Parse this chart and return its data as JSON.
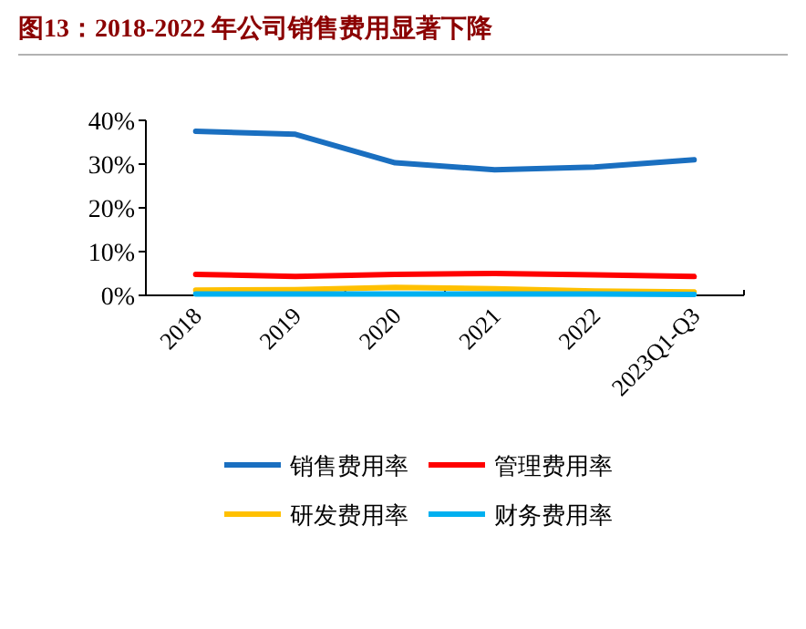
{
  "chart_data": {
    "type": "line",
    "title": "图13：2018-2022 年公司销售费用显著下降",
    "categories": [
      "2018",
      "2019",
      "2020",
      "2021",
      "2022",
      "2023Q1-Q3"
    ],
    "series": [
      {
        "name": "销售费用率",
        "color": "#1a6fc0",
        "values": [
          37.5,
          36.8,
          30.3,
          28.7,
          29.3,
          31.0
        ]
      },
      {
        "name": "管理费用率",
        "color": "#ff0000",
        "values": [
          4.8,
          4.3,
          4.8,
          5.0,
          4.7,
          4.3
        ]
      },
      {
        "name": "研发费用率",
        "color": "#ffc000",
        "values": [
          1.2,
          1.3,
          1.8,
          1.5,
          1.0,
          0.8
        ]
      },
      {
        "name": "财务费用率",
        "color": "#00b0f0",
        "values": [
          0.3,
          0.3,
          0.3,
          0.3,
          0.3,
          0.2
        ]
      }
    ],
    "ylim": [
      0,
      40
    ],
    "yticks": [
      {
        "value": 0,
        "label": "0%"
      },
      {
        "value": 10,
        "label": "10%"
      },
      {
        "value": 20,
        "label": "20%"
      },
      {
        "value": 30,
        "label": "30%"
      },
      {
        "value": 40,
        "label": "40%"
      }
    ],
    "legend": "bottom"
  }
}
